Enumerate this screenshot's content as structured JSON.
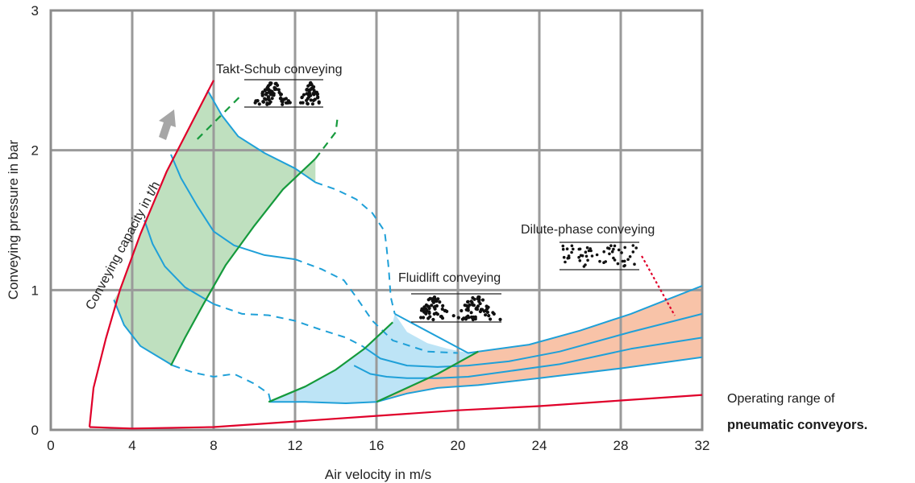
{
  "chart_data": {
    "type": "line",
    "xlabel": "Air velocity in m/s",
    "ylabel": "Conveying pressure in bar",
    "xlim": [
      0,
      32
    ],
    "ylim": [
      0,
      3
    ],
    "xticks": [
      0,
      4,
      8,
      12,
      16,
      20,
      24,
      28,
      32
    ],
    "yticks": [
      0,
      1,
      2,
      3
    ],
    "grid": true,
    "colors": {
      "grid": "#9a9a9a",
      "frame": "#8c8c8c",
      "boundary": "#e0002a",
      "blue": "#1fa0d8",
      "green": "#159a3c",
      "fill_green": "#bfe0bf",
      "fill_blue": "#bde4f6",
      "fill_salmon": "#f8c3a8",
      "arrow": "#a6a6a6"
    },
    "annotations": {
      "takt": "Takt-Schub conveying",
      "fluid": "Fluidlift conveying",
      "dilute": "Dilute-phase conveying",
      "capacity": "Conveying capacity in t/h"
    },
    "boundary_curves": [
      {
        "points": [
          [
            1.9,
            0.02
          ],
          [
            2.1,
            0.3
          ],
          [
            2.7,
            0.65
          ],
          [
            3.4,
            1.0
          ],
          [
            4.4,
            1.4
          ],
          [
            5.7,
            1.85
          ],
          [
            8,
            2.5
          ]
        ]
      },
      {
        "points": [
          [
            1.9,
            0.02
          ],
          [
            4,
            0.01
          ],
          [
            8,
            0.02
          ],
          [
            12,
            0.06
          ],
          [
            16,
            0.1
          ],
          [
            20,
            0.14
          ],
          [
            24,
            0.17
          ],
          [
            28,
            0.21
          ],
          [
            32,
            0.25
          ]
        ]
      }
    ],
    "blue_curves": [
      {
        "points": [
          [
            7.7,
            2.43
          ],
          [
            8.4,
            2.25
          ],
          [
            9.2,
            2.1
          ],
          [
            10.5,
            1.98
          ],
          [
            12,
            1.87
          ],
          [
            13,
            1.77
          ]
        ],
        "dash": false
      },
      {
        "points": [
          [
            13,
            1.77
          ],
          [
            14,
            1.72
          ],
          [
            15,
            1.65
          ],
          [
            15.8,
            1.55
          ],
          [
            16.4,
            1.42
          ],
          [
            16.5,
            1.3
          ],
          [
            16.6,
            1.15
          ],
          [
            16.7,
            0.95
          ],
          [
            16.9,
            0.83
          ]
        ],
        "dash": true
      },
      {
        "points": [
          [
            5.9,
            1.97
          ],
          [
            6.4,
            1.8
          ],
          [
            7.2,
            1.6
          ],
          [
            8,
            1.42
          ],
          [
            9,
            1.32
          ],
          [
            10.5,
            1.25
          ],
          [
            12,
            1.22
          ]
        ],
        "dash": false
      },
      {
        "points": [
          [
            12,
            1.22
          ],
          [
            13.3,
            1.15
          ],
          [
            14.4,
            1.07
          ],
          [
            15,
            0.95
          ],
          [
            15.8,
            0.78
          ],
          [
            16.8,
            0.64
          ],
          [
            18.5,
            0.56
          ],
          [
            20,
            0.55
          ]
        ],
        "dash": true
      },
      {
        "points": [
          [
            4.6,
            1.5
          ],
          [
            5,
            1.33
          ],
          [
            5.6,
            1.17
          ],
          [
            6.6,
            1.02
          ],
          [
            8,
            0.9
          ]
        ],
        "dash": false
      },
      {
        "points": [
          [
            8,
            0.9
          ],
          [
            9.4,
            0.83
          ],
          [
            10.7,
            0.82
          ],
          [
            12,
            0.78
          ],
          [
            13.2,
            0.72
          ],
          [
            14.5,
            0.66
          ],
          [
            15.3,
            0.6
          ]
        ],
        "dash": true
      },
      {
        "points": [
          [
            15.3,
            0.6
          ],
          [
            16.2,
            0.51
          ],
          [
            17.5,
            0.46
          ],
          [
            19,
            0.45
          ],
          [
            20.5,
            0.46
          ],
          [
            22.5,
            0.49
          ],
          [
            25,
            0.56
          ],
          [
            28.5,
            0.7
          ],
          [
            32,
            0.83
          ]
        ],
        "dash": false
      },
      {
        "points": [
          [
            3.1,
            0.93
          ],
          [
            3.6,
            0.75
          ],
          [
            4.4,
            0.6
          ],
          [
            5.2,
            0.53
          ],
          [
            6,
            0.46
          ]
        ],
        "dash": false
      },
      {
        "points": [
          [
            6,
            0.46
          ],
          [
            7,
            0.41
          ],
          [
            8,
            0.38
          ],
          [
            9,
            0.4
          ],
          [
            10,
            0.33
          ],
          [
            10.7,
            0.26
          ]
        ],
        "dash": true
      },
      {
        "points": [
          [
            10.7,
            0.26
          ],
          [
            10.8,
            0.2
          ],
          [
            12.5,
            0.2
          ],
          [
            14.5,
            0.19
          ],
          [
            16,
            0.2
          ]
        ],
        "dash": false
      },
      {
        "points": [
          [
            14.9,
            0.46
          ],
          [
            15.7,
            0.4
          ],
          [
            16.5,
            0.38
          ],
          [
            17.5,
            0.37
          ],
          [
            19,
            0.37
          ],
          [
            20.5,
            0.38
          ],
          [
            22.5,
            0.42
          ],
          [
            25,
            0.47
          ],
          [
            28.5,
            0.58
          ],
          [
            32,
            0.66
          ]
        ],
        "dash": false
      },
      {
        "points": [
          [
            16,
            0.2
          ],
          [
            17.5,
            0.26
          ],
          [
            19,
            0.3
          ],
          [
            21,
            0.32
          ],
          [
            24,
            0.37
          ],
          [
            28,
            0.44
          ],
          [
            32,
            0.52
          ]
        ],
        "dash": false
      },
      {
        "points": [
          [
            16.9,
            0.83
          ],
          [
            20.5,
            0.55
          ],
          [
            23.5,
            0.61
          ],
          [
            26,
            0.71
          ],
          [
            28.5,
            0.83
          ],
          [
            32,
            1.03
          ]
        ],
        "dash": false
      }
    ],
    "green_curves": [
      {
        "points": [
          [
            5.9,
            0.46
          ],
          [
            6.6,
            0.66
          ],
          [
            7.5,
            0.9
          ],
          [
            8.6,
            1.18
          ],
          [
            10,
            1.46
          ],
          [
            11.4,
            1.72
          ],
          [
            13,
            1.94
          ]
        ],
        "dash": false
      },
      {
        "points": [
          [
            13,
            1.94
          ],
          [
            14,
            2.13
          ],
          [
            14.1,
            2.25
          ]
        ],
        "dash": true
      },
      {
        "points": [
          [
            10.7,
            0.2
          ],
          [
            12.5,
            0.31
          ],
          [
            14,
            0.43
          ],
          [
            15.4,
            0.58
          ],
          [
            16.8,
            0.77
          ]
        ],
        "dash": false
      },
      {
        "points": [
          [
            16,
            0.2
          ],
          [
            17.5,
            0.3
          ],
          [
            19,
            0.4
          ],
          [
            21,
            0.56
          ]
        ],
        "dash": false
      },
      {
        "points": [
          [
            7.2,
            2.08
          ],
          [
            9.4,
            2.4
          ]
        ],
        "dash": true
      }
    ],
    "fill_regions": [
      {
        "name": "green",
        "points": [
          [
            3.1,
            0.93
          ],
          [
            3.4,
            1.0
          ],
          [
            4.4,
            1.4
          ],
          [
            5.7,
            1.85
          ],
          [
            7.7,
            2.43
          ],
          [
            8.4,
            2.25
          ],
          [
            9.2,
            2.1
          ],
          [
            10.5,
            1.98
          ],
          [
            12,
            1.87
          ],
          [
            13,
            1.77
          ],
          [
            13,
            1.94
          ],
          [
            11.4,
            1.72
          ],
          [
            10,
            1.46
          ],
          [
            8.6,
            1.18
          ],
          [
            7.5,
            0.9
          ],
          [
            6.6,
            0.66
          ],
          [
            5.9,
            0.46
          ],
          [
            5.2,
            0.53
          ],
          [
            4.4,
            0.6
          ],
          [
            3.6,
            0.75
          ]
        ]
      },
      {
        "name": "blue",
        "points": [
          [
            10.7,
            0.2
          ],
          [
            12.5,
            0.31
          ],
          [
            14,
            0.43
          ],
          [
            15.4,
            0.58
          ],
          [
            16.8,
            0.77
          ],
          [
            16.9,
            0.83
          ],
          [
            17.5,
            0.7
          ],
          [
            18.5,
            0.62
          ],
          [
            19.5,
            0.58
          ],
          [
            20.5,
            0.55
          ],
          [
            21,
            0.56
          ],
          [
            19,
            0.4
          ],
          [
            17.5,
            0.3
          ],
          [
            16,
            0.2
          ],
          [
            14.5,
            0.19
          ],
          [
            12.5,
            0.2
          ],
          [
            10.8,
            0.2
          ]
        ]
      },
      {
        "name": "salmon",
        "points": [
          [
            16,
            0.2
          ],
          [
            17.5,
            0.3
          ],
          [
            19,
            0.4
          ],
          [
            21,
            0.56
          ],
          [
            23.5,
            0.61
          ],
          [
            26,
            0.71
          ],
          [
            28.5,
            0.83
          ],
          [
            32,
            1.03
          ],
          [
            32,
            0.52
          ],
          [
            28,
            0.44
          ],
          [
            24,
            0.37
          ],
          [
            21,
            0.32
          ],
          [
            19,
            0.3
          ],
          [
            17.5,
            0.26
          ]
        ]
      }
    ]
  },
  "caption": {
    "line1": "Operating range of",
    "line2": "pneumatic conveyors."
  }
}
